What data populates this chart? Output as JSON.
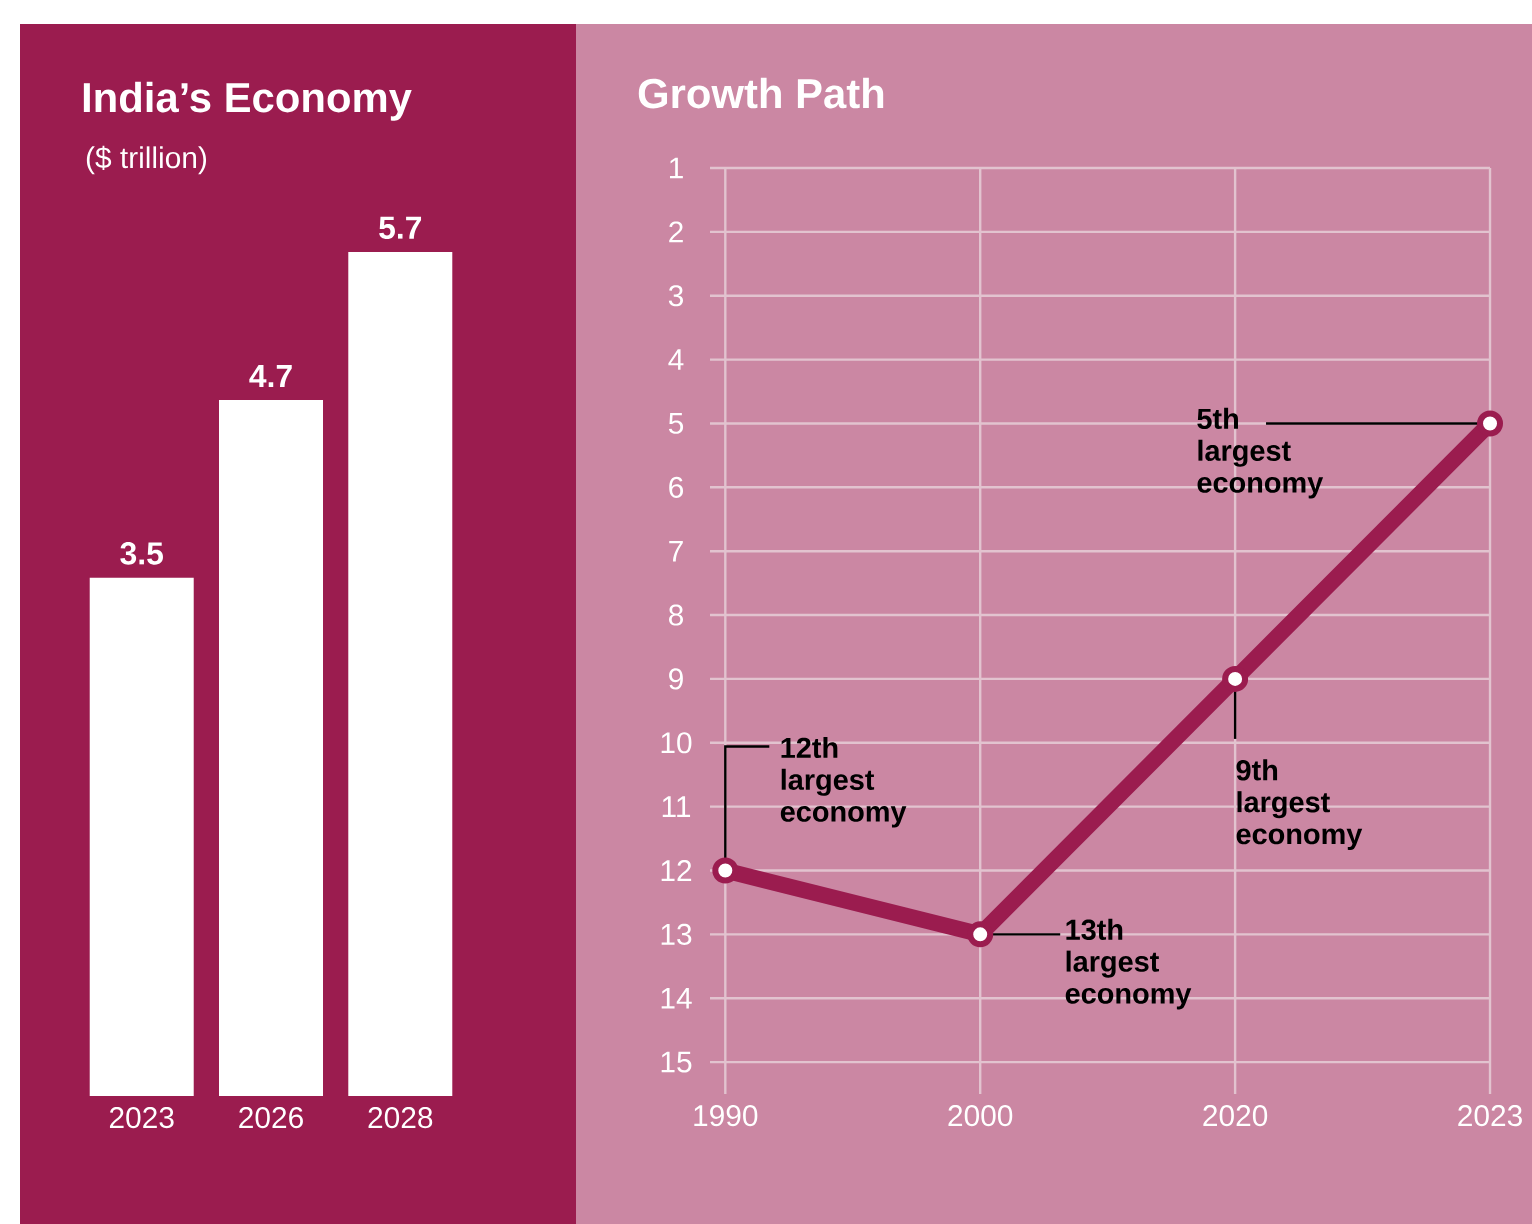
{
  "chart_data": [
    {
      "type": "bar",
      "title": "India’s Economy",
      "subtitle": "($ trillion)",
      "categories": [
        "2023",
        "2026",
        "2028"
      ],
      "values": [
        3.5,
        4.7,
        5.7
      ],
      "color": "#ffffff",
      "data_labels": true
    },
    {
      "type": "line",
      "title": "Growth Path",
      "categories": [
        "1990",
        "2000",
        "2020",
        "2023"
      ],
      "values": [
        12,
        13,
        9,
        5
      ],
      "color": "#9b1c4f",
      "ylim": [
        15.5,
        1
      ],
      "yticks": [
        1,
        2,
        3,
        4,
        5,
        6,
        7,
        8,
        9,
        10,
        11,
        12,
        13,
        14,
        15
      ],
      "grid": true,
      "marker": "circle",
      "annotations": [
        {
          "text": "12th largest economy",
          "x": "1990",
          "y": 12
        },
        {
          "text": "13th largest economy",
          "x": "2000",
          "y": 13
        },
        {
          "text": "9th largest economy",
          "x": "2020",
          "y": 9
        },
        {
          "text": "5th largest economy",
          "x": "2023",
          "y": 5
        }
      ]
    }
  ]
}
